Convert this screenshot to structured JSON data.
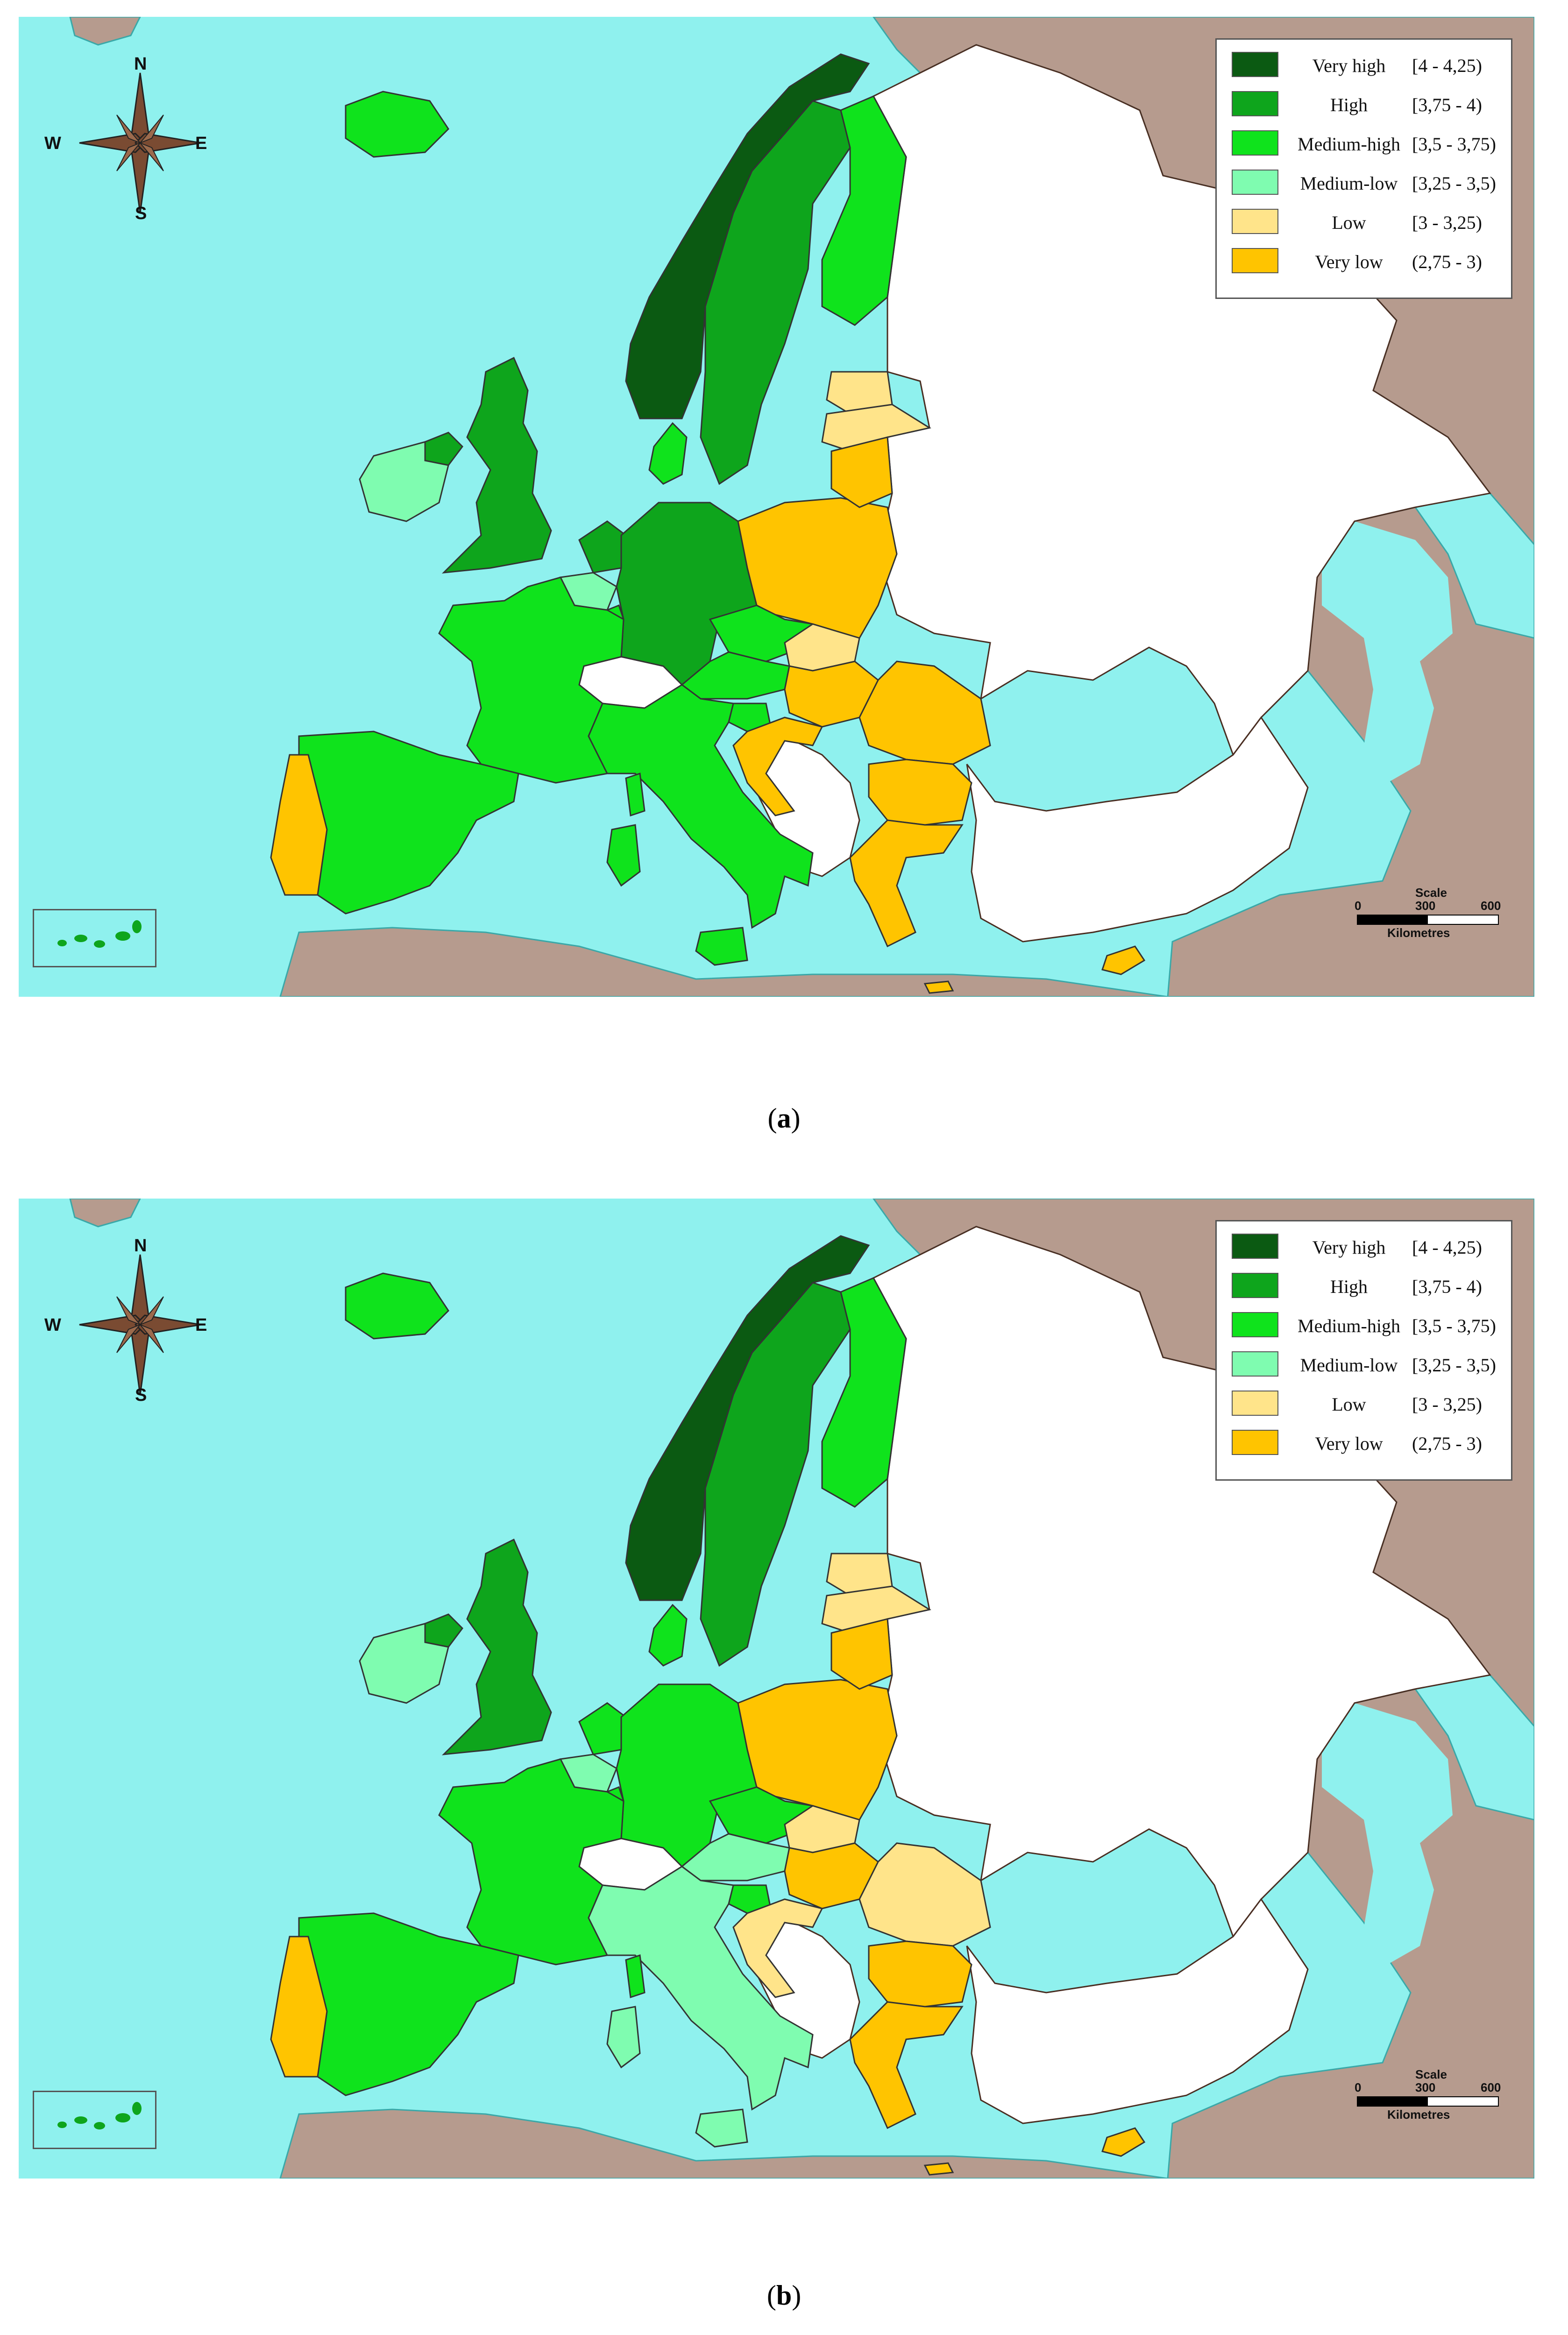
{
  "legend": {
    "items": [
      {
        "label": "Very high",
        "range": "[4 - 4,25)",
        "color": "#0b5a12"
      },
      {
        "label": "High",
        "range": "[3,75 - 4)",
        "color": "#0ea51c"
      },
      {
        "label": "Medium-high",
        "range": "[3,5 - 3,75)",
        "color": "#0fe31c"
      },
      {
        "label": "Medium-low",
        "range": "[3,25 - 3,5)",
        "color": "#7ffcb0"
      },
      {
        "label": "Low",
        "range": "[3 - 3,25)",
        "color": "#ffe48a"
      },
      {
        "label": "Very low",
        "range": "(2,75 - 3)",
        "color": "#ffc400"
      }
    ]
  },
  "compass": {
    "n": "N",
    "s": "S",
    "e": "E",
    "w": "W"
  },
  "scale": {
    "title": "Scale",
    "ticks": [
      "0",
      "300",
      "600"
    ],
    "unit": "Kilometres"
  },
  "colors": {
    "sea": "#8ff1ee",
    "land_outside": "#b69b8e",
    "no_data": "#ffffff"
  },
  "panels": [
    {
      "caption": "(a)",
      "caption_letter": "a",
      "categories": {
        "norway": "Very high",
        "sweden": "High",
        "uk": "High",
        "germany": "High",
        "netherlands": "High",
        "northern_ireland": "High",
        "finland": "Medium-high",
        "iceland": "Medium-high",
        "france": "Medium-high",
        "spain": "Medium-high",
        "italy": "Medium-high",
        "denmark": "Medium-high",
        "austria": "Medium-high",
        "czechia": "Medium-high",
        "slovenia": "Medium-high",
        "luxembourg": "Medium-high",
        "ireland": "Medium-low",
        "belgium": "Medium-low",
        "estonia": "Low",
        "latvia": "Low",
        "slovakia": "Low",
        "lithuania": "Very low",
        "poland": "Very low",
        "hungary": "Very low",
        "romania": "Very low",
        "croatia": "Very low",
        "bulgaria": "Very low",
        "greece": "Very low",
        "portugal": "Very low",
        "cyprus": "Very low",
        "malta": "Very low"
      }
    },
    {
      "caption": "(b)",
      "caption_letter": "b",
      "categories": {
        "norway": "Very high",
        "sweden": "High",
        "uk": "High",
        "northern_ireland": "High",
        "finland": "Medium-high",
        "iceland": "Medium-high",
        "france": "Medium-high",
        "spain": "Medium-high",
        "germany": "Medium-high",
        "netherlands": "Medium-high",
        "denmark": "Medium-high",
        "czechia": "Medium-high",
        "slovenia": "Medium-high",
        "luxembourg": "Medium-high",
        "ireland": "Medium-low",
        "italy": "Medium-low",
        "austria": "Medium-low",
        "belgium": "Medium-low",
        "estonia": "Low",
        "latvia": "Low",
        "slovakia": "Low",
        "romania": "Low",
        "croatia": "Low",
        "lithuania": "Very low",
        "poland": "Very low",
        "hungary": "Very low",
        "bulgaria": "Very low",
        "greece": "Very low",
        "portugal": "Very low",
        "cyprus": "Very low",
        "malta": "Very low"
      }
    }
  ]
}
